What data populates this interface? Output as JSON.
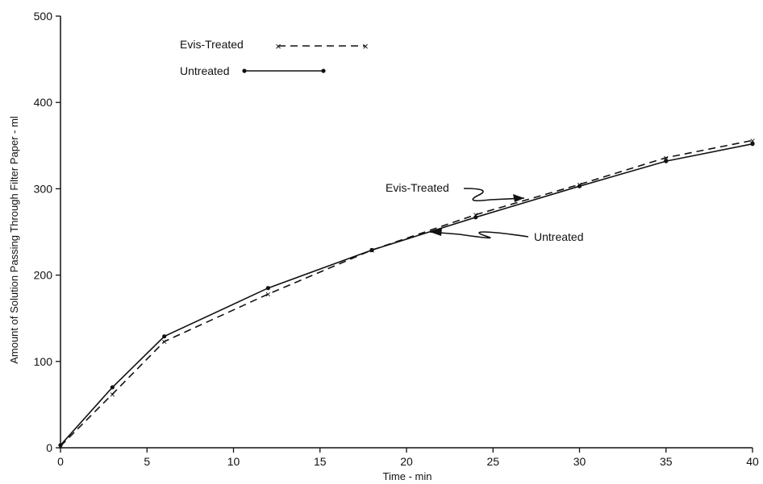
{
  "chart_data": {
    "type": "line",
    "title": "",
    "xlabel": "Time - min",
    "ylabel": "Amount of Solution Passing Through Filter Paper - ml",
    "xlim": [
      0,
      40
    ],
    "ylim": [
      0,
      500
    ],
    "x_ticks": [
      0,
      5,
      10,
      15,
      20,
      25,
      30,
      35,
      40
    ],
    "y_ticks": [
      0,
      100,
      200,
      300,
      400,
      500
    ],
    "grid": false,
    "legend_position": "top-left",
    "series": [
      {
        "name": "Evis-Treated",
        "line_style": "dashed",
        "marker": "x",
        "color": "#111111",
        "x": [
          0,
          3,
          6,
          12,
          18,
          24,
          30,
          35,
          40
        ],
        "y": [
          2,
          62,
          123,
          178,
          229,
          270,
          305,
          336,
          356
        ]
      },
      {
        "name": "Untreated",
        "line_style": "solid",
        "marker": "dot",
        "color": "#111111",
        "x": [
          0,
          3,
          6,
          12,
          18,
          24,
          30,
          35,
          40
        ],
        "y": [
          3,
          70,
          129,
          185,
          229,
          267,
          303,
          332,
          352
        ]
      }
    ],
    "annotations": [
      {
        "text": "Evis-Treated",
        "series": "Evis-Treated"
      },
      {
        "text": "Untreated",
        "series": "Untreated"
      }
    ]
  }
}
